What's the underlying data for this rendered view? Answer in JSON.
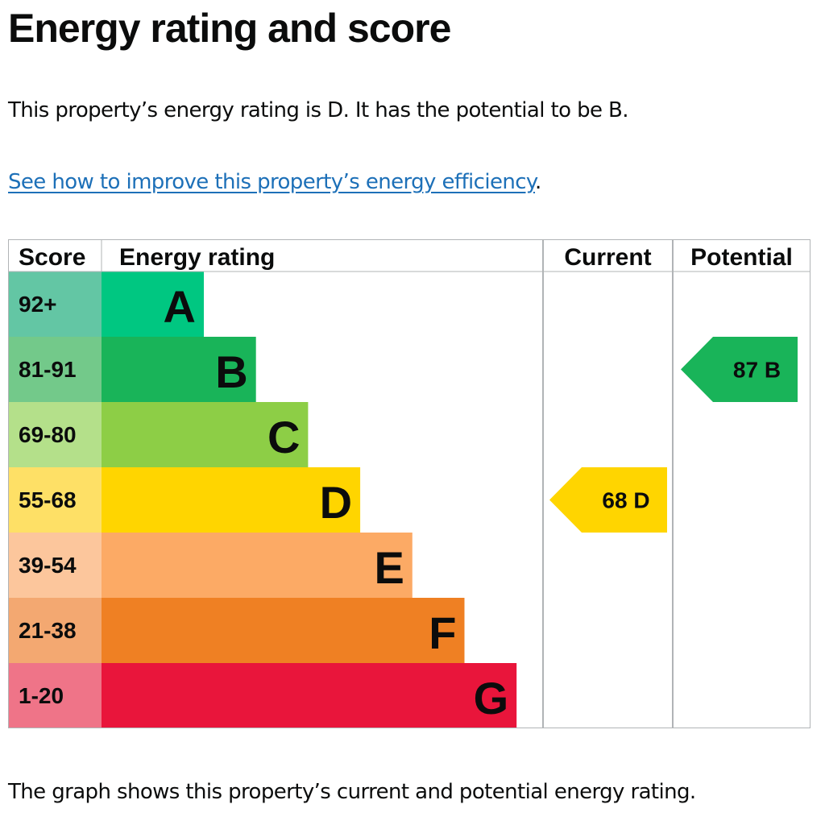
{
  "title": "Energy rating and score",
  "intro": "This property’s energy rating is D. It has the potential to be B.",
  "link": {
    "text": "See how to improve this property’s energy efficiency",
    "suffix": "."
  },
  "caption": "The graph shows this property’s current and potential energy rating.",
  "chart_data": {
    "type": "bar",
    "headers": {
      "score": "Score",
      "rating": "Energy rating",
      "current": "Current",
      "potential": "Potential"
    },
    "bands": [
      {
        "letter": "A",
        "range": "92+",
        "color": "#00c781",
        "score_color": "#63c6a4"
      },
      {
        "letter": "B",
        "range": "81-91",
        "color": "#19b459",
        "score_color": "#73c98a"
      },
      {
        "letter": "C",
        "range": "69-80",
        "color": "#8dce46",
        "score_color": "#b4e08a"
      },
      {
        "letter": "D",
        "range": "55-68",
        "color": "#ffd500",
        "score_color": "#fee066"
      },
      {
        "letter": "E",
        "range": "39-54",
        "color": "#fcaa65",
        "score_color": "#fcc69c"
      },
      {
        "letter": "F",
        "range": "21-38",
        "color": "#ef8023",
        "score_color": "#f3a871"
      },
      {
        "letter": "G",
        "range": "1-20",
        "color": "#e9153b",
        "score_color": "#ef7488"
      }
    ],
    "current": {
      "score": 68,
      "letter": "D",
      "label": "68  D"
    },
    "potential": {
      "score": 87,
      "letter": "B",
      "label": "87  B"
    }
  }
}
